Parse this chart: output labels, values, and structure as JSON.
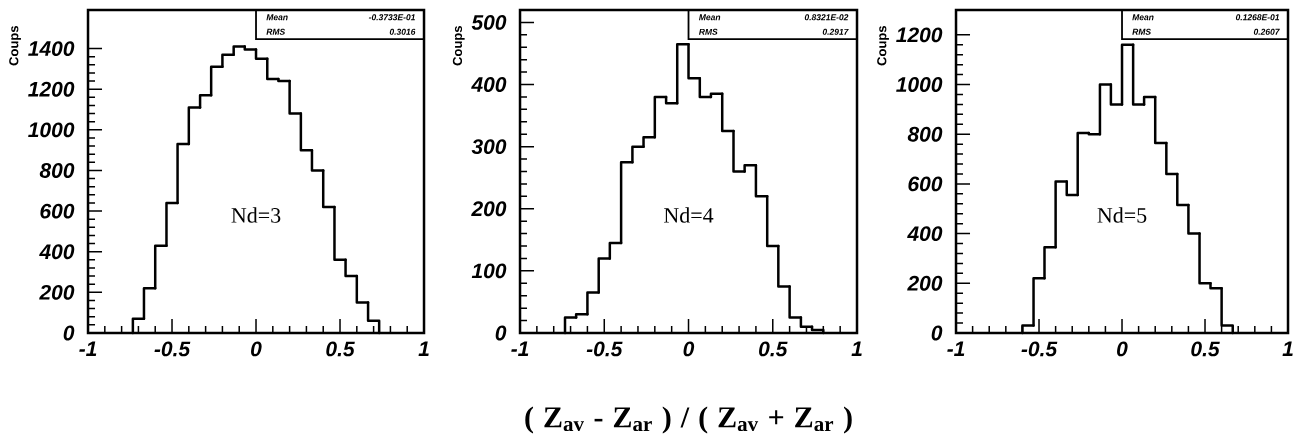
{
  "chart_data": [
    {
      "type": "histogram",
      "ylabel": "Coups",
      "bins": [
        -0.733,
        -0.667,
        -0.6,
        -0.533,
        -0.467,
        -0.4,
        -0.333,
        -0.267,
        -0.2,
        -0.133,
        -0.067,
        0,
        0.067,
        0.133,
        0.2,
        0.267,
        0.333,
        0.4,
        0.467,
        0.533,
        0.6,
        0.667,
        0.733
      ],
      "values": [
        70,
        220,
        430,
        640,
        930,
        1110,
        1170,
        1310,
        1370,
        1410,
        1395,
        1350,
        1250,
        1240,
        1080,
        900,
        800,
        620,
        360,
        280,
        150,
        60
      ],
      "color": "#000000",
      "xlim": [
        -1,
        1
      ],
      "ylim": [
        0,
        1590
      ],
      "xticks": [
        -1,
        -0.5,
        0,
        0.5,
        1
      ],
      "yticks": [
        0,
        200,
        400,
        600,
        800,
        1000,
        1200,
        1400
      ],
      "annotations": [
        "Nd=3",
        "Mean",
        "-0.3733E-01",
        "RMS",
        "0.3016"
      ]
    },
    {
      "type": "histogram",
      "ylabel": "Coups",
      "xlabel": "( Z$_{av}$ - Z$_{ar}$ ) / ( Z$_{av}$ + Z$_{ar}$ )",
      "bins": [
        -0.733,
        -0.667,
        -0.6,
        -0.533,
        -0.467,
        -0.4,
        -0.333,
        -0.267,
        -0.2,
        -0.133,
        -0.067,
        0,
        0.067,
        0.133,
        0.2,
        0.267,
        0.333,
        0.4,
        0.467,
        0.533,
        0.6,
        0.667,
        0.733,
        0.8
      ],
      "values": [
        25,
        30,
        65,
        120,
        145,
        275,
        300,
        315,
        380,
        370,
        465,
        410,
        380,
        385,
        325,
        260,
        270,
        220,
        140,
        75,
        25,
        10,
        5
      ],
      "color": "#000000",
      "xlim": [
        -1,
        1
      ],
      "ylim": [
        0,
        520
      ],
      "xticks": [
        -1,
        -0.5,
        0,
        0.5,
        1
      ],
      "yticks": [
        0,
        100,
        200,
        300,
        400,
        500
      ],
      "annotations": [
        "Nd=4",
        "Mean",
        "0.8321E-02",
        "RMS",
        "0.2917"
      ]
    },
    {
      "type": "histogram",
      "ylabel": "Coups",
      "bins": [
        -0.6,
        -0.533,
        -0.467,
        -0.4,
        -0.333,
        -0.267,
        -0.2,
        -0.133,
        -0.067,
        0,
        0.067,
        0.133,
        0.2,
        0.267,
        0.333,
        0.4,
        0.467,
        0.533,
        0.6,
        0.667
      ],
      "values": [
        30,
        220,
        345,
        610,
        555,
        805,
        800,
        1000,
        920,
        1160,
        920,
        950,
        765,
        640,
        515,
        400,
        200,
        180,
        30
      ],
      "color": "#000000",
      "xlim": [
        -1,
        1
      ],
      "ylim": [
        0,
        1300
      ],
      "xticks": [
        -1,
        -0.5,
        0,
        0.5,
        1
      ],
      "yticks": [
        0,
        200,
        400,
        600,
        800,
        1000,
        1200
      ],
      "annotations": [
        "Nd=5",
        "Mean",
        "0.1268E-01",
        "RMS",
        "0.2607"
      ]
    }
  ]
}
